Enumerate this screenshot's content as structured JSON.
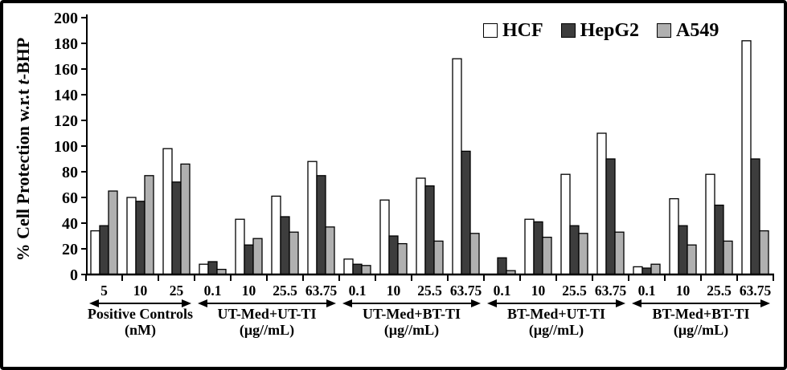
{
  "chart_data": {
    "type": "bar",
    "title": "",
    "ylabel": "% Cell Protection w.r.t t-BHP",
    "ylabel_parts": {
      "prefix": "% Cell Protection w.r.t ",
      "italic": "t",
      "suffix": "-BHP"
    },
    "ylim": [
      0,
      200
    ],
    "ytick_step": 20,
    "yticks": [
      0,
      20,
      40,
      60,
      80,
      100,
      120,
      140,
      160,
      180,
      200
    ],
    "grid": false,
    "legend_position": "top-right",
    "series_names": [
      "HCF",
      "HepG2",
      "A549"
    ],
    "series_colors": [
      "#ffffff",
      "#3d3d3d",
      "#b0b0b0"
    ],
    "bar_outline_color": "#000000",
    "groups": [
      {
        "label": "Positive Controls",
        "unit": "(nM)",
        "categories": [
          "5",
          "10",
          "25"
        ],
        "values": [
          [
            34,
            60,
            98
          ],
          [
            38,
            57,
            72
          ],
          [
            65,
            77,
            86
          ]
        ]
      },
      {
        "label": "UT-Med+UT-TI",
        "unit": "(μg//mL)",
        "categories": [
          "0.1",
          "10",
          "25.5",
          "63.75"
        ],
        "values": [
          [
            8,
            43,
            61,
            88
          ],
          [
            10,
            23,
            45,
            77
          ],
          [
            4,
            28,
            33,
            37
          ]
        ]
      },
      {
        "label": "UT-Med+BT-TI",
        "unit": "(μg//mL)",
        "categories": [
          "0.1",
          "10",
          "25.5",
          "63.75"
        ],
        "values": [
          [
            12,
            58,
            75,
            168
          ],
          [
            8,
            30,
            69,
            96
          ],
          [
            7,
            24,
            26,
            32
          ]
        ]
      },
      {
        "label": "BT-Med+UT-TI",
        "unit": "(μg//mL)",
        "categories": [
          "0.1",
          "10",
          "25.5",
          "63.75"
        ],
        "values": [
          [
            0,
            43,
            78,
            110
          ],
          [
            13,
            41,
            38,
            90
          ],
          [
            3,
            29,
            32,
            33
          ]
        ]
      },
      {
        "label": "BT-Med+BT-TI",
        "unit": "(μg//mL)",
        "categories": [
          "0.1",
          "10",
          "25.5",
          "63.75"
        ],
        "values": [
          [
            6,
            59,
            78,
            182
          ],
          [
            5,
            38,
            54,
            90
          ],
          [
            8,
            23,
            26,
            34
          ]
        ]
      }
    ]
  }
}
